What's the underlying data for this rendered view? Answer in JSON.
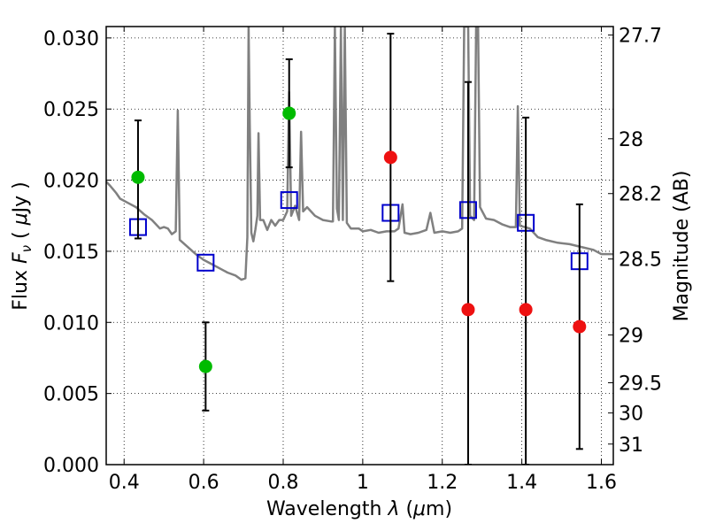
{
  "chart_data": {
    "type": "scatter",
    "xlabel": "Wavelength  λ (μm)",
    "ylabel": "Flux  F_ν  ( μJy )",
    "ylabel_parts": {
      "prefix": "Flux  ",
      "symbol": "F",
      "subscript": "ν",
      "open": "  ( ",
      "mu": "μ",
      "unit": "Jy )"
    },
    "xlabel_parts": {
      "prefix": "Wavelength  ",
      "symbol": "λ",
      "open": " (",
      "mu": "μ",
      "unit": "m)"
    },
    "y2label": "Magnitude (AB)",
    "xlim": [
      0.355,
      1.63
    ],
    "ylim": [
      0.0,
      0.0308
    ],
    "grid": true,
    "x_ticks": [
      {
        "value": 0.4,
        "label": "0.4"
      },
      {
        "value": 0.6,
        "label": "0.6"
      },
      {
        "value": 0.8,
        "label": "0.8"
      },
      {
        "value": 1.0,
        "label": "1"
      },
      {
        "value": 1.2,
        "label": "1.2"
      },
      {
        "value": 1.4,
        "label": "1.4"
      },
      {
        "value": 1.6,
        "label": "1.6"
      }
    ],
    "y_ticks": [
      {
        "value": 0.0,
        "label": "0.000"
      },
      {
        "value": 0.005,
        "label": "0.005"
      },
      {
        "value": 0.01,
        "label": "0.010"
      },
      {
        "value": 0.015,
        "label": "0.015"
      },
      {
        "value": 0.02,
        "label": "0.020"
      },
      {
        "value": 0.025,
        "label": "0.025"
      },
      {
        "value": 0.03,
        "label": "0.030"
      }
    ],
    "y2_ticks": [
      {
        "value": 27.7,
        "label": "27.7"
      },
      {
        "value": 28.0,
        "label": "28"
      },
      {
        "value": 28.2,
        "label": "28.2"
      },
      {
        "value": 28.5,
        "label": "28.5"
      },
      {
        "value": 29.0,
        "label": "29"
      },
      {
        "value": 29.5,
        "label": "29.5"
      },
      {
        "value": 30.0,
        "label": "30"
      },
      {
        "value": 31.0,
        "label": "31"
      }
    ],
    "series": [
      {
        "name": "model spectrum",
        "kind": "line",
        "color": "#808080",
        "points": [
          [
            0.355,
            0.0199
          ],
          [
            0.365,
            0.0196
          ],
          [
            0.38,
            0.0191
          ],
          [
            0.39,
            0.0187
          ],
          [
            0.41,
            0.0184
          ],
          [
            0.43,
            0.0181
          ],
          [
            0.45,
            0.0176
          ],
          [
            0.47,
            0.0172
          ],
          [
            0.49,
            0.0166
          ],
          [
            0.5,
            0.0167
          ],
          [
            0.51,
            0.0166
          ],
          [
            0.52,
            0.0162
          ],
          [
            0.53,
            0.0164
          ],
          [
            0.535,
            0.0249
          ],
          [
            0.54,
            0.0158
          ],
          [
            0.56,
            0.0153
          ],
          [
            0.58,
            0.0148
          ],
          [
            0.6,
            0.0144
          ],
          [
            0.62,
            0.0141
          ],
          [
            0.64,
            0.0138
          ],
          [
            0.66,
            0.0135
          ],
          [
            0.68,
            0.0133
          ],
          [
            0.695,
            0.013
          ],
          [
            0.705,
            0.0131
          ],
          [
            0.71,
            0.016
          ],
          [
            0.713,
            0.0308
          ],
          [
            0.716,
            0.024
          ],
          [
            0.72,
            0.0163
          ],
          [
            0.725,
            0.0157
          ],
          [
            0.73,
            0.0165
          ],
          [
            0.735,
            0.0175
          ],
          [
            0.738,
            0.0233
          ],
          [
            0.742,
            0.0172
          ],
          [
            0.75,
            0.0172
          ],
          [
            0.76,
            0.0165
          ],
          [
            0.77,
            0.0172
          ],
          [
            0.78,
            0.0168
          ],
          [
            0.79,
            0.0172
          ],
          [
            0.8,
            0.0172
          ],
          [
            0.81,
            0.0178
          ],
          [
            0.815,
            0.0262
          ],
          [
            0.82,
            0.0175
          ],
          [
            0.83,
            0.0182
          ],
          [
            0.84,
            0.0172
          ],
          [
            0.845,
            0.0234
          ],
          [
            0.85,
            0.0178
          ],
          [
            0.86,
            0.0181
          ],
          [
            0.87,
            0.0178
          ],
          [
            0.88,
            0.0175
          ],
          [
            0.9,
            0.0172
          ],
          [
            0.92,
            0.0171
          ],
          [
            0.925,
            0.0171
          ],
          [
            0.93,
            0.0308
          ],
          [
            0.935,
            0.018
          ],
          [
            0.94,
            0.0172
          ],
          [
            0.945,
            0.0308
          ],
          [
            0.95,
            0.0172
          ],
          [
            0.955,
            0.0308
          ],
          [
            0.96,
            0.017
          ],
          [
            0.97,
            0.0166
          ],
          [
            0.99,
            0.0166
          ],
          [
            1.0,
            0.0164
          ],
          [
            1.02,
            0.0165
          ],
          [
            1.04,
            0.0163
          ],
          [
            1.06,
            0.0164
          ],
          [
            1.08,
            0.0164
          ],
          [
            1.09,
            0.0166
          ],
          [
            1.1,
            0.0183
          ],
          [
            1.105,
            0.0163
          ],
          [
            1.12,
            0.0162
          ],
          [
            1.14,
            0.0163
          ],
          [
            1.16,
            0.0165
          ],
          [
            1.17,
            0.0177
          ],
          [
            1.18,
            0.0163
          ],
          [
            1.2,
            0.0164
          ],
          [
            1.22,
            0.0163
          ],
          [
            1.24,
            0.0164
          ],
          [
            1.25,
            0.0166
          ],
          [
            1.255,
            0.0308
          ],
          [
            1.265,
            0.0308
          ],
          [
            1.27,
            0.0175
          ],
          [
            1.28,
            0.0172
          ],
          [
            1.285,
            0.0308
          ],
          [
            1.29,
            0.0308
          ],
          [
            1.295,
            0.0181
          ],
          [
            1.31,
            0.0173
          ],
          [
            1.33,
            0.0172
          ],
          [
            1.35,
            0.0169
          ],
          [
            1.37,
            0.0167
          ],
          [
            1.385,
            0.0167
          ],
          [
            1.39,
            0.0252
          ],
          [
            1.395,
            0.0168
          ],
          [
            1.42,
            0.0166
          ],
          [
            1.44,
            0.016
          ],
          [
            1.46,
            0.0158
          ],
          [
            1.49,
            0.0156
          ],
          [
            1.52,
            0.0155
          ],
          [
            1.55,
            0.0153
          ],
          [
            1.58,
            0.0151
          ],
          [
            1.6,
            0.0148
          ],
          [
            1.63,
            0.0148
          ]
        ]
      },
      {
        "name": "model photometry",
        "kind": "marker",
        "marker": "open-square",
        "color": "#0000cc",
        "points": [
          [
            0.435,
            0.0167
          ],
          [
            0.605,
            0.0142
          ],
          [
            0.815,
            0.0186
          ],
          [
            1.07,
            0.0177
          ],
          [
            1.265,
            0.0179
          ],
          [
            1.41,
            0.017
          ],
          [
            1.545,
            0.0143
          ]
        ]
      },
      {
        "name": "detections",
        "kind": "marker",
        "marker": "filled-circle",
        "color": "#00bb00",
        "points": [
          {
            "x": 0.435,
            "y": 0.0202,
            "err_lo": 0.0043,
            "err_hi": 0.004
          },
          {
            "x": 0.605,
            "y": 0.0069,
            "err_lo": 0.0031,
            "err_hi": 0.0031
          },
          {
            "x": 0.815,
            "y": 0.0247,
            "err_lo": 0.0038,
            "err_hi": 0.0038
          }
        ]
      },
      {
        "name": "non-detections",
        "kind": "marker",
        "marker": "filled-circle",
        "color": "#ee1111",
        "points": [
          {
            "x": 1.07,
            "y": 0.0216,
            "err_lo": 0.0087,
            "err_hi": 0.0087
          },
          {
            "x": 1.265,
            "y": 0.0109,
            "err_lo": 0.0109,
            "err_hi": 0.016
          },
          {
            "x": 1.41,
            "y": 0.0109,
            "err_lo": 0.0109,
            "err_hi": 0.0135
          },
          {
            "x": 1.545,
            "y": 0.0097,
            "err_lo": 0.0086,
            "err_hi": 0.0086
          }
        ]
      }
    ]
  }
}
